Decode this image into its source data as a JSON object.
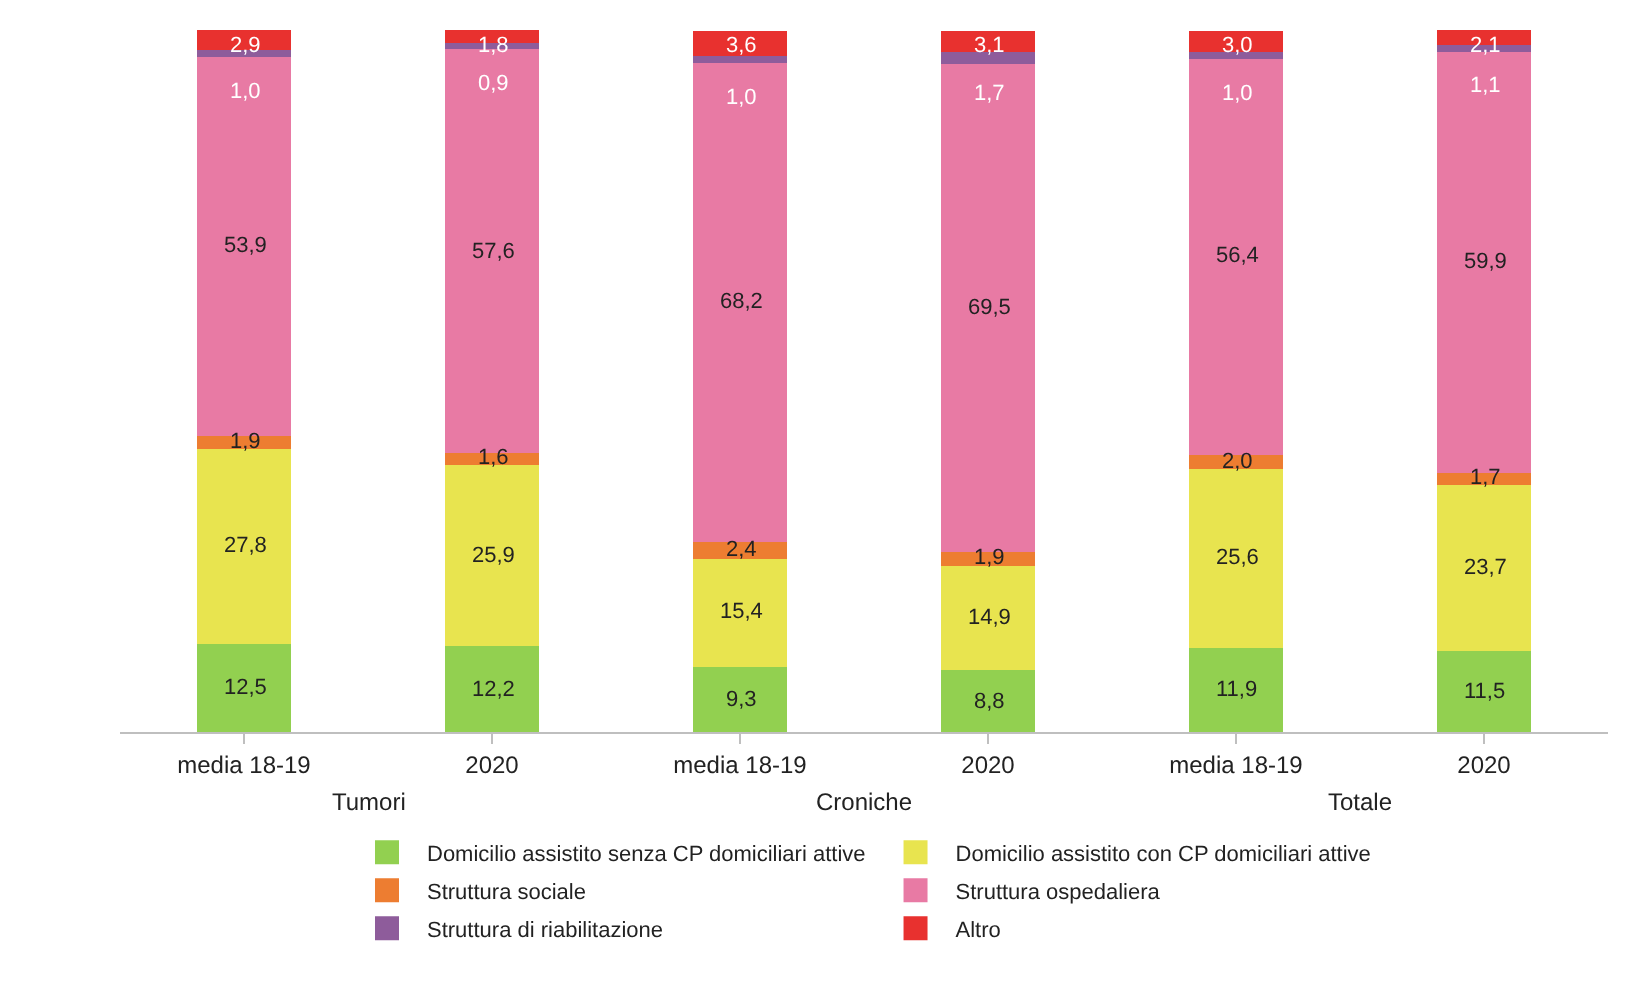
{
  "chart_data": {
    "type": "bar",
    "stacked": true,
    "categories": [
      "media 18-19",
      "2020",
      "media 18-19",
      "2020",
      "media 18-19",
      "2020"
    ],
    "ylim": [
      0,
      100
    ],
    "tick_labels": "x",
    "legend": "bottom",
    "annotations": [
      "Tumori",
      "Croniche",
      "Totale"
    ],
    "series": [
      {
        "name": "Domicilio assistito senza CP domiciliari attive",
        "color": "#92d050",
        "values": [
          12.5,
          12.2,
          9.3,
          8.8,
          11.9,
          11.5
        ],
        "value_labels": [
          "12,5",
          "12,2",
          "9,3",
          "8,8",
          "11,9",
          "11,5"
        ]
      },
      {
        "name": "Domicilio assistito con CP domiciliari attive",
        "color": "#e8e44f",
        "values": [
          27.8,
          25.9,
          15.4,
          14.9,
          25.6,
          23.7
        ],
        "value_labels": [
          "27,8",
          "25,9",
          "15,4",
          "14,9",
          "25,6",
          "23,7"
        ]
      },
      {
        "name": "Struttura sociale",
        "color": "#ed7d31",
        "values": [
          1.9,
          1.6,
          2.4,
          1.9,
          2.0,
          1.7
        ],
        "value_labels": [
          "1,9",
          "1,6",
          "2,4",
          "1,9",
          "2,0",
          "1,7"
        ]
      },
      {
        "name": "Struttura ospedaliera",
        "color": "#e87aa4",
        "values": [
          53.9,
          57.6,
          68.2,
          69.5,
          56.4,
          59.9
        ],
        "value_labels": [
          "53,9",
          "57,6",
          "68,2",
          "69,5",
          "56,4",
          "59,9"
        ]
      },
      {
        "name": "Struttura di riabilitazione",
        "color": "#8e5c9b",
        "values": [
          1.0,
          0.9,
          1.0,
          1.7,
          1.0,
          1.1
        ],
        "value_labels": [
          "1,0",
          "0,9",
          "1,0",
          "1,7",
          "1,0",
          "1,1"
        ]
      },
      {
        "name": "Altro",
        "color": "#e8312f",
        "values": [
          2.9,
          1.8,
          3.6,
          3.1,
          3.0,
          2.1
        ],
        "value_labels": [
          "2,9",
          "1,8",
          "3,6",
          "3,1",
          "3,0",
          "2,1"
        ]
      }
    ]
  }
}
